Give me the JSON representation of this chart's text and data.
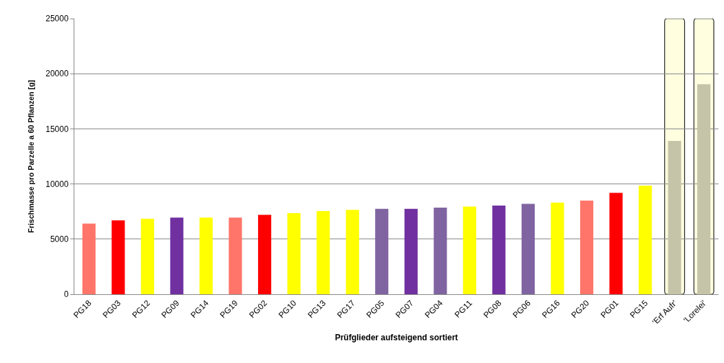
{
  "chart_data": {
    "type": "bar",
    "xlabel": "Prüfglieder aufsteigend sortiert",
    "ylabel": "Frischmasse pro Parzelle a 60 Pflanzen [g]",
    "categories": [
      "PG18",
      "PG03",
      "PG12",
      "PG09",
      "PG14",
      "PG19",
      "PG02",
      "PG10",
      "PG13",
      "PG17",
      "PG05",
      "PG07",
      "PG04",
      "PG11",
      "PG08",
      "PG06",
      "PG16",
      "PG20",
      "PG01",
      "PG15",
      "'Erf Aufr'",
      "'Lorelei'"
    ],
    "values": [
      6400,
      6700,
      6850,
      6950,
      6950,
      6950,
      7200,
      7350,
      7550,
      7650,
      7750,
      7750,
      7850,
      7950,
      8050,
      8200,
      8300,
      8500,
      9200,
      9850,
      13900,
      19050
    ],
    "colors": [
      "#ff7569",
      "#ff0000",
      "#ffff00",
      "#7030a0",
      "#ffff00",
      "#ff7569",
      "#ff0000",
      "#ffff00",
      "#ffff00",
      "#ffff00",
      "#8064a2",
      "#7030a0",
      "#8064a2",
      "#ffff00",
      "#7030a0",
      "#8064a2",
      "#ffff00",
      "#ff7569",
      "#ff0000",
      "#ffff00",
      "#c6c4a8",
      "#c6c4a8"
    ],
    "ylim": [
      0,
      25000
    ],
    "yticks": [
      0,
      5000,
      10000,
      15000,
      20000,
      25000
    ],
    "grid": "y",
    "bands": [
      {
        "axis": "x",
        "from": "'Erf Aufr'",
        "to": "'Erf Aufr'",
        "color": "#ffffe0"
      },
      {
        "axis": "x",
        "from": "'Lorelei'",
        "to": "'Lorelei'",
        "color": "#ffffe0"
      }
    ]
  }
}
